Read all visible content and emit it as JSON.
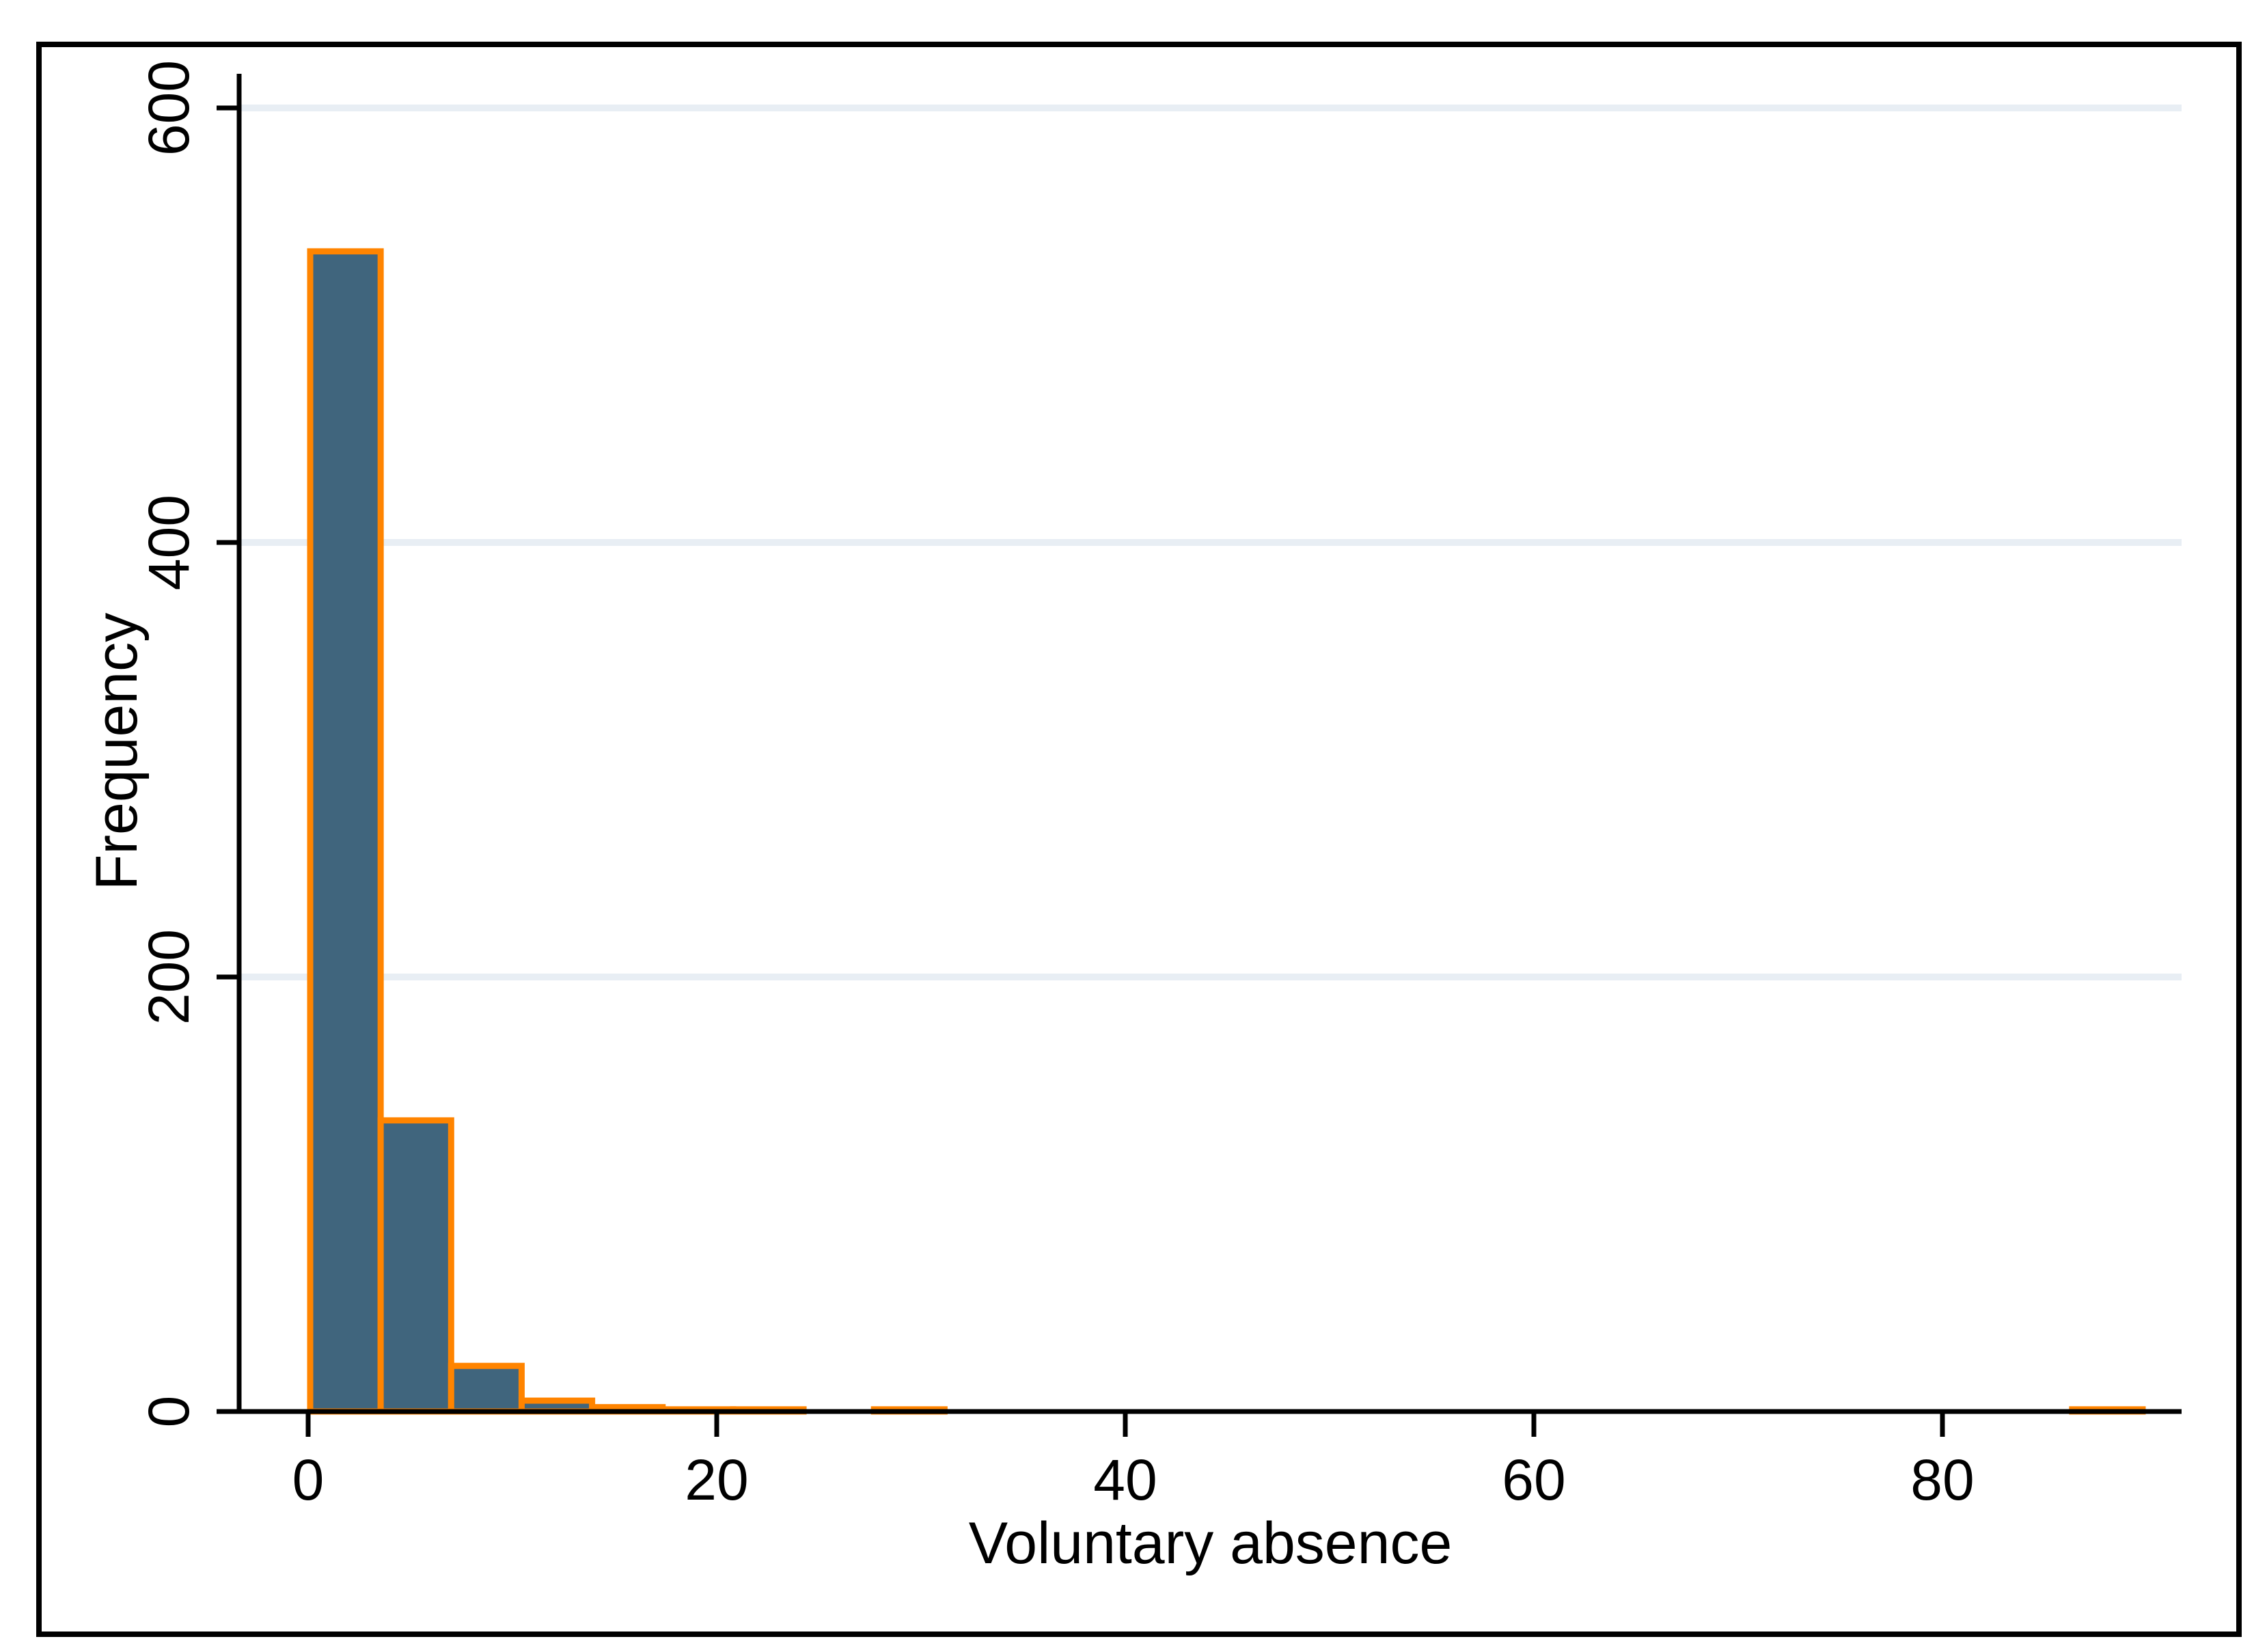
{
  "chart_data": {
    "type": "bar",
    "subtype": "histogram",
    "title": "",
    "xlabel": "Voluntary absence",
    "ylabel": "Frequency",
    "x_ticks": [
      0,
      20,
      40,
      60,
      80
    ],
    "y_ticks": [
      0,
      200,
      400,
      600
    ],
    "ylim": [
      0,
      600
    ],
    "xlim": [
      -3.4,
      91.7
    ],
    "bin_width": 3.45,
    "grid": "horizontal-only",
    "legend": "none",
    "bins": [
      {
        "x0": 0.1,
        "x1": 3.55,
        "freq": 534
      },
      {
        "x0": 3.55,
        "x1": 7.0,
        "freq": 134
      },
      {
        "x0": 7.0,
        "x1": 10.45,
        "freq": 21
      },
      {
        "x0": 10.45,
        "x1": 13.9,
        "freq": 5
      },
      {
        "x0": 13.9,
        "x1": 17.35,
        "freq": 2
      },
      {
        "x0": 17.35,
        "x1": 20.8,
        "freq": 1
      },
      {
        "x0": 20.8,
        "x1": 24.25,
        "freq": 1
      },
      {
        "x0": 27.7,
        "x1": 31.15,
        "freq": 1
      },
      {
        "x0": 86.35,
        "x1": 89.8,
        "freq": 1
      }
    ],
    "colors": {
      "bar_fill": "#40657D",
      "bar_stroke": "#FF8400",
      "gridline": "#E8EEF4",
      "axis": "#000000",
      "text": "#000000",
      "border": "#000000",
      "background": "#FFFFFF"
    }
  }
}
